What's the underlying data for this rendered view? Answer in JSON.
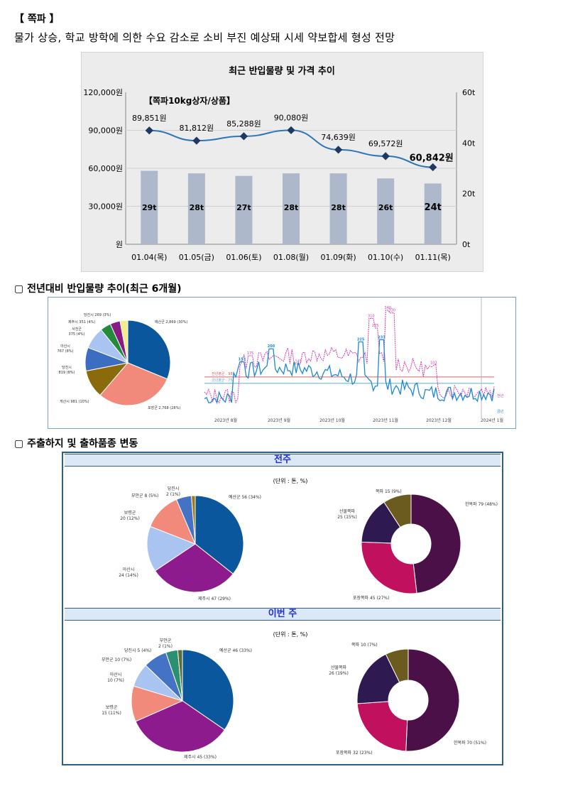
{
  "header": {
    "title": "【 쪽파 】",
    "subtitle": "물가 상승, 학교 방학에 의한 수요 감소로 소비 부진 예상돼 시세 약보합세 형성 전망"
  },
  "chart_data": [
    {
      "type": "bar+line",
      "title": "최근 반입물량 및 가격 추이",
      "annotation": "【쪽파10kg상자/상품】",
      "categories": [
        "01.04(목)",
        "01.05(금)",
        "01.06(토)",
        "01.08(월)",
        "01.09(화)",
        "01.10(수)",
        "01.11(목)"
      ],
      "series": [
        {
          "name": "반입물량",
          "unit": "t",
          "values": [
            29,
            28,
            27,
            28,
            28,
            26,
            24
          ],
          "labels": [
            "29t",
            "28t",
            "27t",
            "28t",
            "28t",
            "26t",
            "24t"
          ],
          "color": "#adb9ca",
          "axis": "right"
        },
        {
          "name": "가격",
          "unit": "원",
          "values": [
            89851,
            81812,
            85288,
            90080,
            74639,
            69572,
            60842
          ],
          "labels": [
            "89,851원",
            "81,812원",
            "85,288원",
            "90,080원",
            "74,639원",
            "69,572원",
            "60,842원"
          ],
          "color": "#2e75b6",
          "axis": "left"
        }
      ],
      "left_axis": {
        "ticks": [
          "120,000원",
          "90,000원",
          "60,000원",
          "30,000원",
          "원"
        ],
        "range": [
          0,
          120000
        ]
      },
      "right_axis": {
        "ticks": [
          "60t",
          "40t",
          "20t",
          "0t"
        ],
        "range": [
          0,
          60
        ]
      }
    },
    {
      "type": "pie",
      "labels": [
        "예산군 2,869 (30%)",
        "포장군 2,768 (28%)",
        "게산시 981 (10%)",
        "당진시 819 (8%)",
        "아산시 767 (8%)",
        "서천군 375 (4%)",
        "제주시 351 (4%)",
        "당진시 269 (3%)"
      ],
      "values": [
        2869,
        2768,
        981,
        819,
        767,
        375,
        351,
        269
      ],
      "colors": [
        "#0b579e",
        "#f28a7c",
        "#8b6a0c",
        "#3c6dc0",
        "#a9c4f0",
        "#248a3c",
        "#8a1a84",
        "#f3ec8e"
      ]
    },
    {
      "type": "line",
      "x_ticks": [
        "2023년 8월",
        "2023년 9월",
        "2023년 10월",
        "2023년 11월",
        "2023년 12월",
        "2024년 1월"
      ],
      "series": [
        {
          "name": "금년",
          "color": "#1e88d0",
          "peak_labels": [
            "153",
            "200",
            "225",
            "233"
          ]
        },
        {
          "name": "전년",
          "color": "#d23ab4",
          "peak_labels": [
            "175",
            "145",
            "275",
            "310",
            "340",
            "330",
            "103"
          ]
        }
      ],
      "reference_lines": [
        {
          "label": "전년평균 : 98",
          "value": 98,
          "color": "#e06060"
        },
        {
          "label": "금년평균 : 75",
          "value": 75,
          "color": "#55b0d6"
        }
      ],
      "end_labels": [
        "전년",
        "금년"
      ]
    },
    {
      "type": "pie",
      "week": "전주",
      "unit": "(단위 : 톤, %)",
      "labels": [
        "예산군 56 (34%)",
        "제주시 47 (29%)",
        "아산시 24 (14%)",
        "보령군 20 (12%)",
        "부안군 8 (5%)",
        "당진시 2 (1%)"
      ],
      "values": [
        56,
        47,
        24,
        20,
        8,
        2
      ],
      "colors": [
        "#0b579e",
        "#8e1b8d",
        "#a9c4f0",
        "#f28a7c",
        "#4472c4",
        "#9c7a10"
      ]
    },
    {
      "type": "donut",
      "week": "전주",
      "labels": [
        "한목파 79 (48%)",
        "포장쪽파 45 (27%)",
        "산물쪽파 25 (15%)",
        "쪽파 15 (9%)"
      ],
      "values": [
        79,
        45,
        25,
        15
      ],
      "colors": [
        "#4c1048",
        "#c0105e",
        "#2e1950",
        "#6b5b1e"
      ]
    },
    {
      "type": "pie",
      "week": "이번 주",
      "unit": "(단위 : 톤, %)",
      "labels": [
        "예산군 46 (33%)",
        "제주시 45 (33%)",
        "보령군 15 (11%)",
        "아산시 10 (7%)",
        "부안군 10 (7%)",
        "당진시 5 (4%)",
        "부안군 2 (1%)"
      ],
      "values": [
        46,
        45,
        15,
        10,
        10,
        5,
        2
      ],
      "colors": [
        "#0b579e",
        "#8e1b8d",
        "#f28a7c",
        "#a9c4f0",
        "#4472c4",
        "#2a9070",
        "#5a6e3a"
      ]
    },
    {
      "type": "donut",
      "week": "이번 주",
      "labels": [
        "한목파 70 (51%)",
        "포장쪽파 32 (23%)",
        "산물쪽파 26 (19%)",
        "쪽파 10 (7%)"
      ],
      "values": [
        70,
        32,
        26,
        10
      ],
      "colors": [
        "#4c1048",
        "#c0105e",
        "#2e1950",
        "#6b5b1e"
      ]
    }
  ],
  "section2": {
    "title": "▢ 전년대비 반입물량 추이(최근 6개월)"
  },
  "section3": {
    "title": "▢ 주출하지 및 출하품종 변동",
    "band_prev": "전주",
    "band_curr": "이번 주",
    "unit": "(단위 : 톤, %)"
  }
}
